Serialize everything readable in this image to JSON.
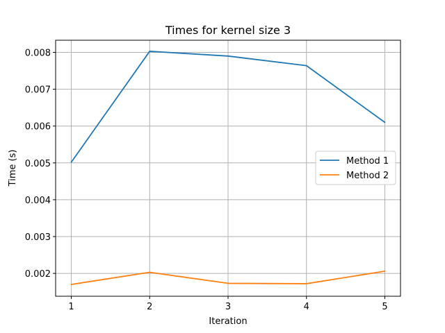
{
  "chart_data": {
    "type": "line",
    "title": "Times for kernel size 3",
    "xlabel": "Iteration",
    "ylabel": "Time (s)",
    "x": [
      1,
      2,
      3,
      4,
      5
    ],
    "xticks": [
      "1",
      "2",
      "3",
      "4",
      "5"
    ],
    "xlim": [
      0.8,
      5.2
    ],
    "ylim": [
      0.00138,
      0.00833
    ],
    "yticks": [
      "0.002",
      "0.003",
      "0.004",
      "0.005",
      "0.006",
      "0.007",
      "0.008"
    ],
    "ytick_values": [
      0.002,
      0.003,
      0.004,
      0.005,
      0.006,
      0.007,
      0.008
    ],
    "grid": true,
    "legend_position": "center-right",
    "series": [
      {
        "name": "Method 1",
        "color": "#1f77b4",
        "values": [
          0.00502,
          0.00803,
          0.0079,
          0.00764,
          0.0061
        ]
      },
      {
        "name": "Method 2",
        "color": "#ff7f0e",
        "values": [
          0.0017,
          0.00203,
          0.00173,
          0.00172,
          0.00206
        ]
      }
    ]
  }
}
